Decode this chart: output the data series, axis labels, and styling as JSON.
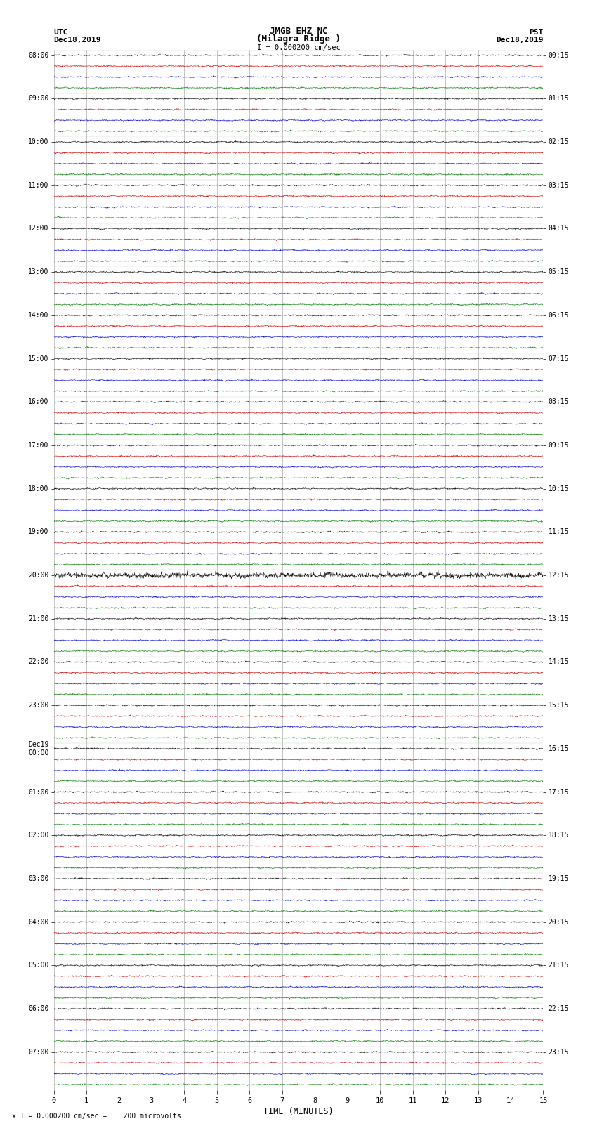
{
  "title_line1": "JMGB EHZ NC",
  "title_line2": "(Milagra Ridge )",
  "scale_text": "I = 0.000200 cm/sec",
  "bottom_scale_text": "x I = 0.000200 cm/sec =    200 microvolts",
  "left_label_line1": "UTC",
  "left_label_line2": "Dec18,2019",
  "right_label_line1": "PST",
  "right_label_line2": "Dec18,2019",
  "xlabel": "TIME (MINUTES)",
  "time_minutes": 15,
  "background_color": "#ffffff",
  "trace_colors": [
    "#000000",
    "#cc0000",
    "#0000cc",
    "#007700"
  ],
  "n_rows": 96,
  "n_colors": 4,
  "noise_scale": 0.07,
  "special_row": 48,
  "left_times_utc": [
    "08:00",
    "09:00",
    "10:00",
    "11:00",
    "12:00",
    "13:00",
    "14:00",
    "15:00",
    "16:00",
    "17:00",
    "18:00",
    "19:00",
    "20:00",
    "21:00",
    "22:00",
    "23:00",
    "Dec19\n00:00",
    "01:00",
    "02:00",
    "03:00",
    "04:00",
    "05:00",
    "06:00",
    "07:00"
  ],
  "right_times_pst": [
    "00:15",
    "01:15",
    "02:15",
    "03:15",
    "04:15",
    "05:15",
    "06:15",
    "07:15",
    "08:15",
    "09:15",
    "10:15",
    "11:15",
    "12:15",
    "13:15",
    "14:15",
    "15:15",
    "16:15",
    "17:15",
    "18:15",
    "19:15",
    "20:15",
    "21:15",
    "22:15",
    "23:15"
  ]
}
